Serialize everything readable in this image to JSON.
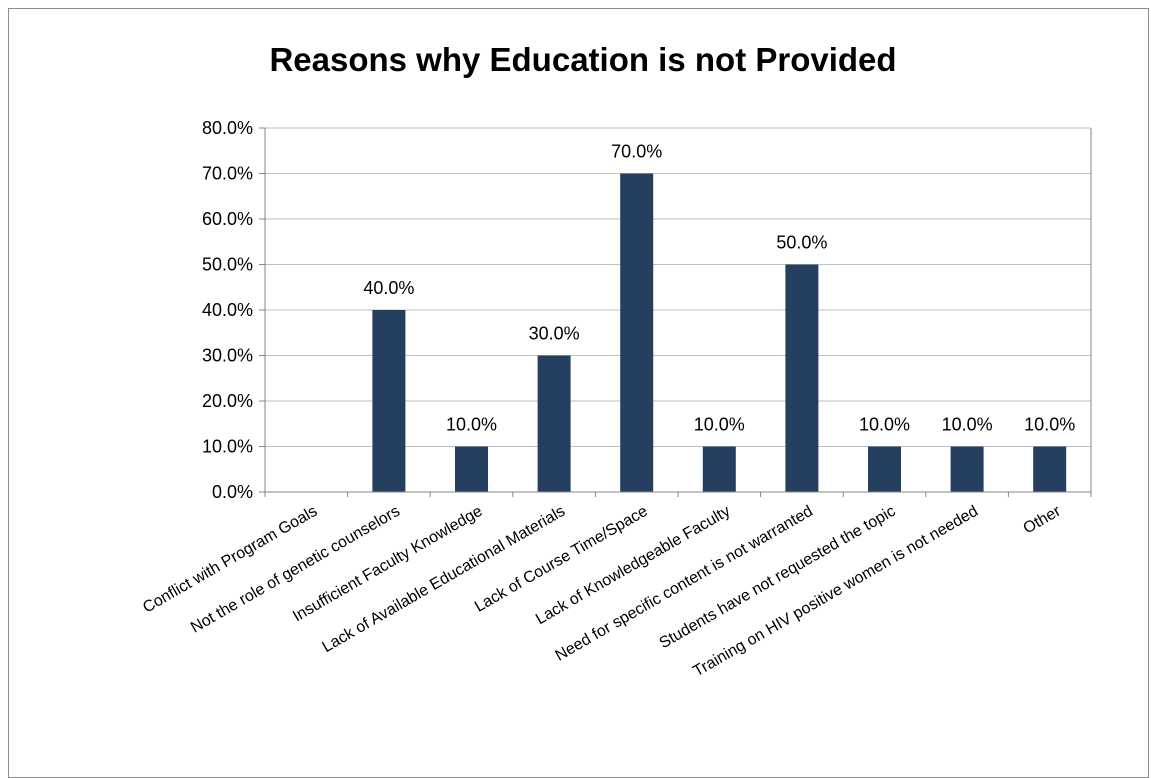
{
  "chart_data": {
    "type": "bar",
    "title": "Reasons why Education is not Provided",
    "xlabel": "",
    "ylabel": "",
    "categories": [
      "Conflict with Program Goals",
      "Not the role of genetic counselors",
      "Insufficient Faculty Knowledge",
      "Lack of Available Educational Materials",
      "Lack of Course Time/Space",
      "Lack of Knowledgeable Faculty",
      "Need for specific content is not warranted",
      "Students have not requested the topic",
      "Training on HIV positive women is not needed",
      "Other"
    ],
    "values": [
      0,
      40,
      10,
      30,
      70,
      10,
      50,
      10,
      10,
      10
    ],
    "data_labels": [
      "",
      "40.0%",
      "10.0%",
      "30.0%",
      "70.0%",
      "10.0%",
      "50.0%",
      "10.0%",
      "10.0%",
      "10.0%"
    ],
    "y_ticks": [
      "0.0%",
      "10.0%",
      "20.0%",
      "30.0%",
      "40.0%",
      "50.0%",
      "60.0%",
      "70.0%",
      "80.0%"
    ],
    "ylim": [
      0,
      80
    ],
    "grid": true,
    "legend": "none",
    "bar_color": "#243f60",
    "grid_color": "#bfbfbf",
    "axis_color": "#868686"
  }
}
